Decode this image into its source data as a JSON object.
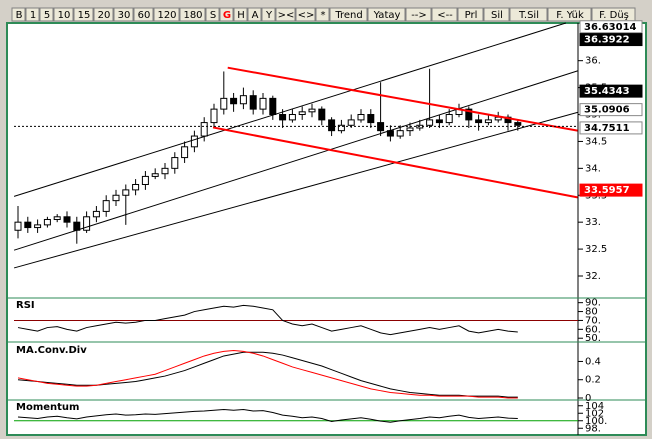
{
  "toolbar": [
    "B",
    "1",
    "5",
    "10",
    "15",
    "20",
    "30",
    "60",
    "120",
    "180",
    "S",
    "G",
    "H",
    "A",
    "Y",
    "><",
    "<>",
    "*",
    "Trend",
    "Yatay",
    "-->",
    "<--",
    "Prl",
    "Sil",
    "T.Sil",
    "F. Yük",
    "F. Düş"
  ],
  "chart_data": [
    {
      "type": "candlestick",
      "open": [
        32.85,
        33.0,
        32.9,
        32.95,
        33.05,
        33.1,
        33.0,
        32.85,
        33.1,
        33.2,
        33.4,
        33.5,
        33.6,
        33.7,
        33.85,
        33.9,
        34.0,
        34.2,
        34.4,
        34.6,
        34.85,
        35.1,
        35.3,
        35.2,
        35.35,
        35.1,
        35.3,
        35.0,
        34.9,
        35.0,
        35.05,
        35.1,
        34.9,
        34.7,
        34.8,
        34.9,
        35.0,
        34.85,
        34.7,
        34.6,
        34.7,
        34.75,
        34.8,
        34.9,
        34.85,
        35.0,
        35.1,
        34.9,
        34.85,
        34.9,
        34.95,
        34.85
      ],
      "high": [
        33.3,
        33.1,
        33.05,
        33.1,
        33.15,
        33.2,
        33.1,
        33.2,
        33.3,
        33.5,
        33.6,
        33.7,
        33.8,
        33.95,
        34.0,
        34.1,
        34.3,
        34.5,
        34.7,
        34.95,
        35.2,
        35.8,
        35.4,
        35.5,
        35.45,
        35.4,
        35.35,
        35.1,
        35.1,
        35.15,
        35.2,
        35.15,
        34.95,
        34.9,
        35.0,
        35.1,
        35.1,
        35.6,
        34.8,
        34.8,
        34.85,
        34.9,
        35.85,
        35.0,
        35.1,
        35.2,
        35.15,
        35.0,
        35.0,
        35.05,
        35.0,
        34.9
      ],
      "low": [
        32.7,
        32.8,
        32.8,
        32.9,
        33.0,
        32.9,
        32.6,
        32.8,
        33.0,
        33.1,
        33.3,
        32.95,
        33.5,
        33.6,
        33.8,
        33.8,
        33.9,
        34.1,
        34.3,
        34.5,
        34.75,
        35.0,
        35.05,
        35.1,
        35.0,
        35.0,
        34.9,
        34.75,
        34.85,
        34.9,
        34.95,
        34.8,
        34.6,
        34.65,
        34.75,
        34.85,
        34.75,
        34.6,
        34.5,
        34.55,
        34.6,
        34.7,
        34.75,
        34.75,
        34.8,
        34.95,
        34.75,
        34.7,
        34.8,
        34.85,
        34.7,
        34.7
      ],
      "close": [
        33.0,
        32.9,
        32.95,
        33.05,
        33.1,
        33.0,
        32.85,
        33.1,
        33.2,
        33.4,
        33.5,
        33.6,
        33.7,
        33.85,
        33.9,
        34.0,
        34.2,
        34.4,
        34.6,
        34.85,
        35.1,
        35.3,
        35.2,
        35.35,
        35.1,
        35.3,
        35.0,
        34.9,
        35.0,
        35.05,
        35.1,
        34.9,
        34.7,
        34.8,
        34.9,
        35.0,
        34.85,
        34.7,
        34.6,
        34.7,
        34.75,
        34.8,
        34.9,
        34.85,
        35.0,
        35.1,
        34.9,
        34.85,
        34.9,
        34.95,
        34.85,
        34.8
      ],
      "ylim": [
        31.61,
        36.7
      ],
      "yticks": [
        {
          "value": 36,
          "label": "36."
        },
        35.5,
        {
          "value": 35,
          "label": "35."
        },
        34.5,
        {
          "value": 34,
          "label": "34."
        },
        33.5,
        {
          "value": 33,
          "label": "33."
        },
        32.5,
        {
          "value": 32,
          "label": "32."
        }
      ],
      "trendlines": [
        {
          "color": "#000000",
          "x": [
            -0.4,
            55.9
          ],
          "y": [
            33.48,
            36.7
          ]
        },
        {
          "color": "#000000",
          "x": [
            -0.4,
            57.1
          ],
          "y": [
            32.48,
            35.81
          ]
        },
        {
          "color": "#000000",
          "x": [
            -0.4,
            57.1
          ],
          "y": [
            32.15,
            35.04
          ]
        },
        {
          "color": "#ff0000",
          "x": [
            21.4,
            57.1
          ],
          "y": [
            35.87,
            34.7
          ]
        },
        {
          "color": "#ff0000",
          "x": [
            19.9,
            57.1
          ],
          "y": [
            34.76,
            33.46
          ]
        }
      ],
      "dashed_line": 34.78,
      "price_markers": [
        {
          "value": 36.63014,
          "color": "#ffffff"
        },
        {
          "value": 36.3922,
          "color": "#000000"
        },
        {
          "value": 35.4343,
          "color": "#000000"
        },
        {
          "value": 35.0906,
          "color": "#ffffff"
        },
        {
          "value": 34.7511,
          "color": "#ffffff"
        },
        {
          "value": 33.5957,
          "color": "#ff0000"
        }
      ]
    },
    {
      "type": "line",
      "title": "RSI",
      "ylim": [
        48,
        93
      ],
      "yticks": [
        {
          "value": 90,
          "label": "90."
        },
        80,
        {
          "value": 70,
          "label": "70."
        },
        {
          "value": 60,
          "label": "60."
        },
        {
          "value": 50,
          "label": "50."
        }
      ],
      "ref_line": 70,
      "ref_color": "#8b0000",
      "series": [
        {
          "color": "#000000",
          "values": [
            62,
            60,
            58,
            62,
            63,
            60,
            58,
            62,
            64,
            66,
            68,
            67,
            68,
            70,
            70,
            72,
            74,
            76,
            80,
            82,
            84,
            86,
            85,
            87,
            86,
            84,
            82,
            70,
            66,
            64,
            66,
            62,
            58,
            60,
            62,
            64,
            60,
            56,
            54,
            56,
            58,
            60,
            62,
            60,
            62,
            64,
            58,
            56,
            58,
            60,
            58,
            57
          ]
        }
      ]
    },
    {
      "type": "line",
      "title": "MA.Conv.Div",
      "ylim": [
        0,
        0.58
      ],
      "yticks": [
        0.4,
        0.2,
        0
      ],
      "series": [
        {
          "color": "#000000",
          "values": [
            0.2,
            0.19,
            0.18,
            0.17,
            0.16,
            0.15,
            0.14,
            0.14,
            0.14,
            0.15,
            0.16,
            0.17,
            0.18,
            0.2,
            0.22,
            0.24,
            0.27,
            0.3,
            0.34,
            0.38,
            0.42,
            0.46,
            0.48,
            0.5,
            0.5,
            0.5,
            0.49,
            0.47,
            0.44,
            0.41,
            0.38,
            0.35,
            0.31,
            0.27,
            0.23,
            0.19,
            0.16,
            0.13,
            0.1,
            0.08,
            0.06,
            0.05,
            0.04,
            0.03,
            0.03,
            0.03,
            0.02,
            0.02,
            0.02,
            0.02,
            0.01,
            0.01
          ]
        },
        {
          "color": "#ff0000",
          "values": [
            0.22,
            0.2,
            0.18,
            0.16,
            0.15,
            0.14,
            0.13,
            0.13,
            0.14,
            0.16,
            0.18,
            0.2,
            0.22,
            0.24,
            0.26,
            0.3,
            0.34,
            0.38,
            0.42,
            0.46,
            0.49,
            0.51,
            0.52,
            0.51,
            0.49,
            0.46,
            0.42,
            0.38,
            0.34,
            0.31,
            0.28,
            0.25,
            0.22,
            0.19,
            0.16,
            0.13,
            0.1,
            0.08,
            0.06,
            0.05,
            0.04,
            0.03,
            0.03,
            0.02,
            0.02,
            0.02,
            0.02,
            0.01,
            0.01,
            0.01,
            0.0,
            0.0
          ]
        }
      ]
    },
    {
      "type": "line",
      "title": "Momentum",
      "ylim": [
        97,
        105
      ],
      "yticks": [
        104,
        102,
        {
          "value": 100,
          "label": "100."
        },
        {
          "value": 98,
          "label": "98."
        }
      ],
      "ref_line": 100,
      "ref_color": "#00a000",
      "series": [
        {
          "color": "#000000",
          "values": [
            101,
            100.8,
            100.6,
            101,
            101.2,
            100.8,
            100.5,
            101,
            101.3,
            101.6,
            101.8,
            101.5,
            101.6,
            101.8,
            101.7,
            101.9,
            102.1,
            102.3,
            102.5,
            102.6,
            102.8,
            103,
            102.8,
            103,
            102.6,
            102.7,
            102.2,
            101.5,
            101.2,
            100.8,
            101,
            100.6,
            99.8,
            100.2,
            100.5,
            100.8,
            100.4,
            99.9,
            99.6,
            100,
            100.3,
            100.6,
            101,
            100.8,
            101.2,
            101.5,
            100.9,
            100.6,
            100.8,
            101,
            100.7,
            100.6
          ]
        }
      ]
    }
  ]
}
